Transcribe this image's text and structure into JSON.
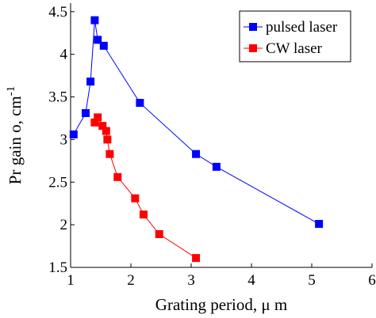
{
  "chart_data": {
    "type": "line",
    "xlabel": "Grating period, μ m",
    "ylabel": "Pr gain o, cm",
    "ylabel_sup": "-1",
    "xlim": [
      1,
      6
    ],
    "ylim": [
      1.5,
      4.6
    ],
    "xticks": [
      1,
      2,
      3,
      4,
      5,
      6
    ],
    "yticks": [
      1.5,
      2,
      2.5,
      3,
      3.5,
      4,
      4.5
    ],
    "xtick_labels": [
      "1",
      "2",
      "3",
      "4",
      "5",
      "6"
    ],
    "ytick_labels": [
      "1.5",
      "2",
      "2.5",
      "3",
      "3.5",
      "4",
      "4.5"
    ],
    "grid": false,
    "legend_position": "top-right",
    "series": [
      {
        "name": "pulsed laser",
        "color": "#0000ff",
        "marker": "square",
        "x": [
          1.05,
          1.25,
          1.33,
          1.4,
          1.45,
          1.55,
          2.15,
          3.08,
          3.42,
          5.12
        ],
        "y": [
          3.06,
          3.31,
          3.68,
          4.4,
          4.17,
          4.1,
          3.43,
          2.83,
          2.68,
          2.01
        ]
      },
      {
        "name": "CW laser",
        "color": "#ff0000",
        "marker": "square",
        "x": [
          1.4,
          1.45,
          1.53,
          1.59,
          1.61,
          1.65,
          1.78,
          2.07,
          2.21,
          2.47,
          3.08
        ],
        "y": [
          3.2,
          3.26,
          3.16,
          3.1,
          3.0,
          2.83,
          2.56,
          2.31,
          2.12,
          1.89,
          1.61
        ]
      }
    ]
  }
}
